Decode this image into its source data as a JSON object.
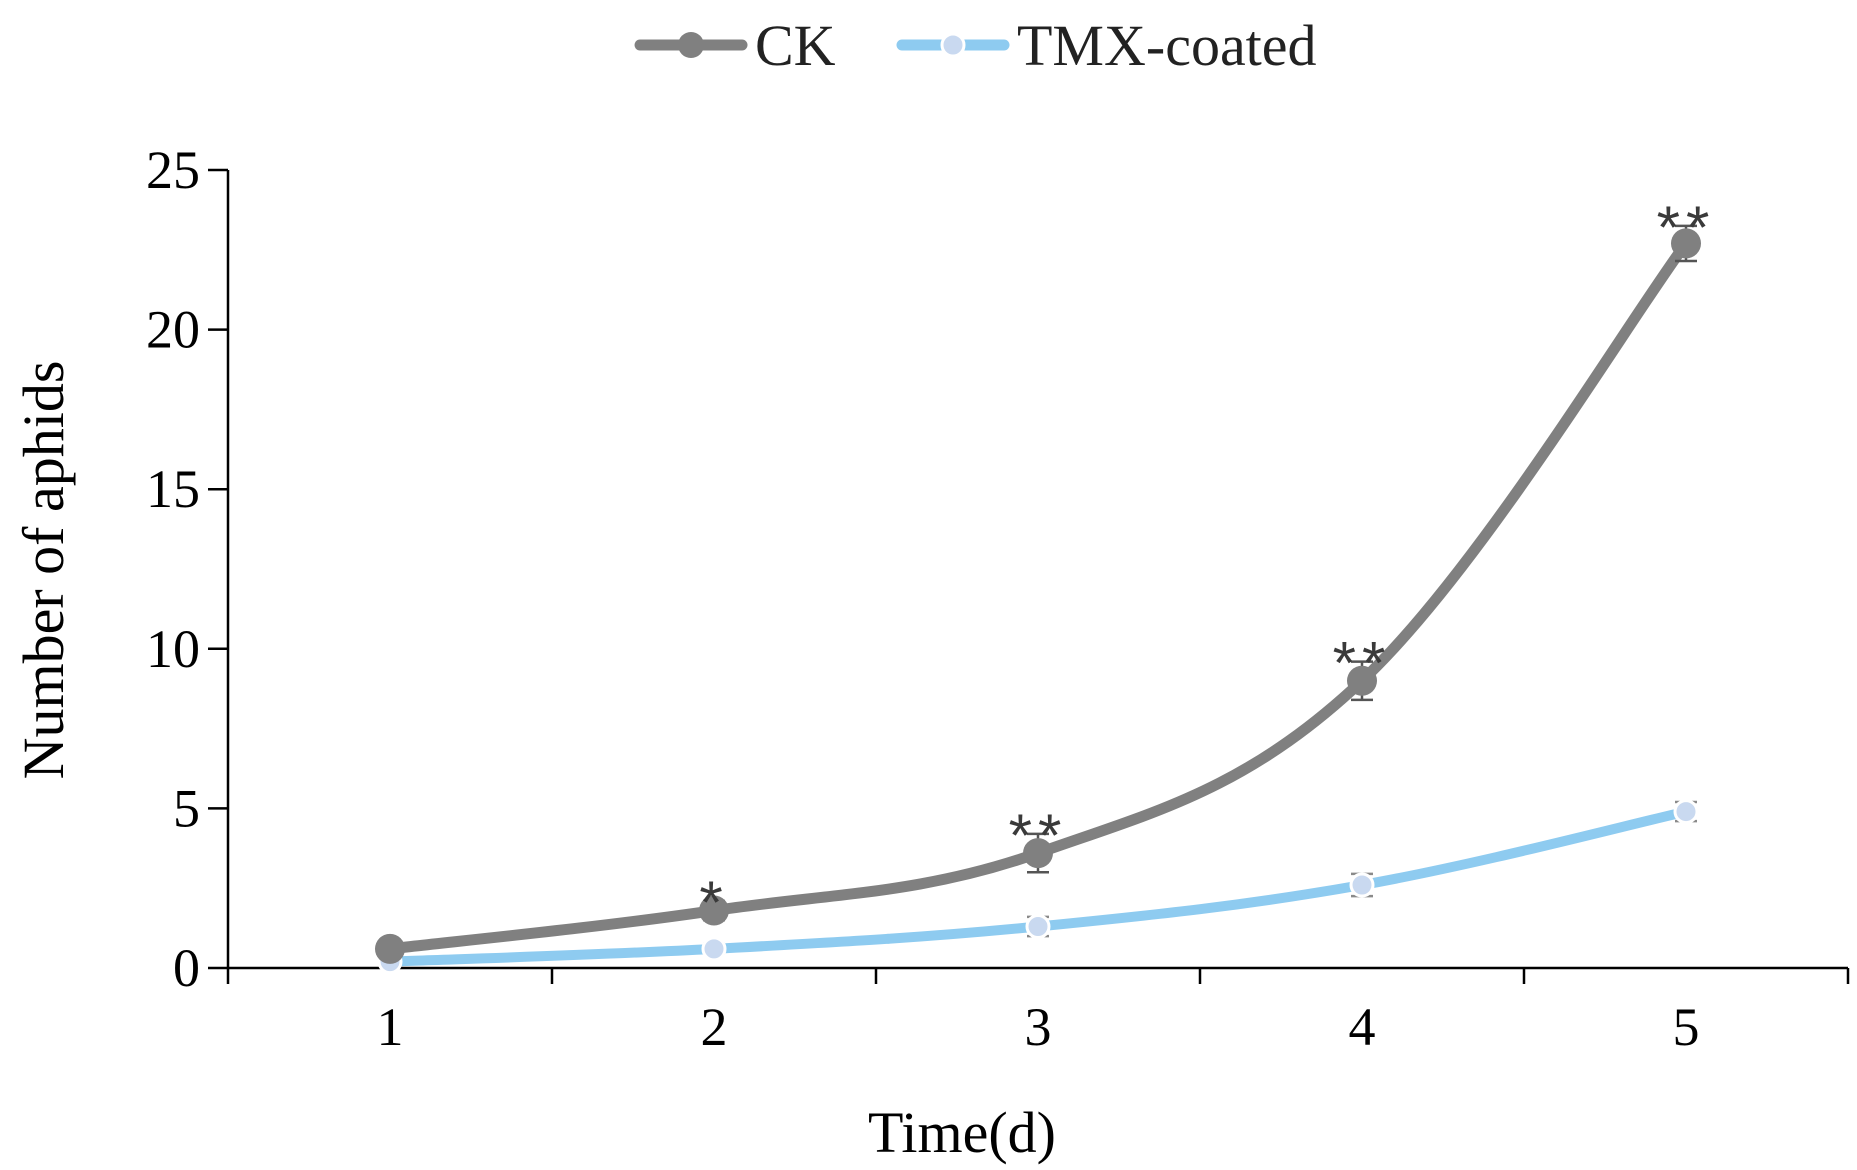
{
  "chart_data": {
    "type": "line",
    "title": "",
    "xlabel": "Time(d)",
    "ylabel": "Number of aphids",
    "x": [
      1,
      2,
      3,
      4,
      5
    ],
    "x_tick_labels": [
      "1",
      "2",
      "3",
      "4",
      "5"
    ],
    "y_ticks": [
      0,
      5,
      10,
      15,
      20,
      25
    ],
    "y_tick_labels": [
      "0",
      "5",
      "10",
      "15",
      "20",
      "25"
    ],
    "ylim": [
      0,
      25
    ],
    "grid": false,
    "legend_position": "top-center",
    "series": [
      {
        "name": "CK",
        "color": "#808080",
        "values": [
          0.6,
          1.8,
          3.6,
          9.0,
          22.7
        ],
        "errors": [
          0.15,
          0.3,
          0.6,
          0.6,
          0.55
        ]
      },
      {
        "name": "TMX-coated",
        "color": "#8ecbf0",
        "marker_color": "#c9d9f0",
        "values": [
          0.2,
          0.6,
          1.3,
          2.6,
          4.9
        ],
        "errors": [
          0.1,
          0.15,
          0.3,
          0.35,
          0.3
        ]
      }
    ],
    "annotations": [
      {
        "x": 2,
        "text": "*"
      },
      {
        "x": 3,
        "text": "**"
      },
      {
        "x": 4,
        "text": "**"
      },
      {
        "x": 5,
        "text": "**"
      }
    ]
  }
}
